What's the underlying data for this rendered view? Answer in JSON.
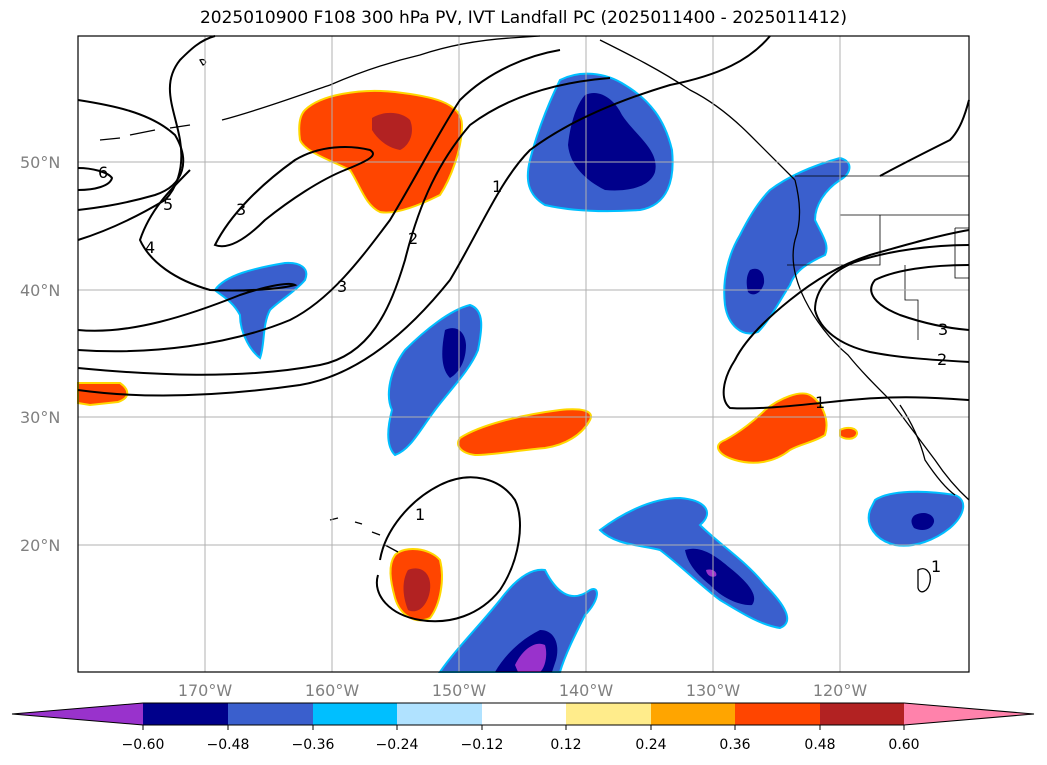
{
  "title": "2025010900 F108 300 hPa PV, IVT Landfall PC (2025011400 - 2025011412)",
  "lat_labels": [
    "50°N",
    "40°N",
    "30°N",
    "20°N"
  ],
  "lon_labels": [
    "170°W",
    "160°W",
    "150°W",
    "140°W",
    "130°W",
    "120°W"
  ],
  "contour_labels": [
    "6",
    "5",
    "4",
    "3",
    "3",
    "2",
    "1",
    "1",
    "3",
    "2",
    "1",
    "1"
  ],
  "colorbar": {
    "ticks": [
      "−0.60",
      "−0.48",
      "−0.36",
      "−0.24",
      "−0.12",
      "0.12",
      "0.24",
      "0.36",
      "0.48",
      "0.60"
    ],
    "colors": {
      "below": "#9932cc",
      "neg060": "#00008b",
      "neg048": "#3a5fcd",
      "neg036": "#00bfff",
      "neg024": "#b0e2ff",
      "zero": "#ffffff",
      "pos012": "#ffec8b",
      "pos024": "#ffa500",
      "pos036": "#ff4500",
      "pos048": "#b22222",
      "above": "#ff82ab"
    }
  }
}
